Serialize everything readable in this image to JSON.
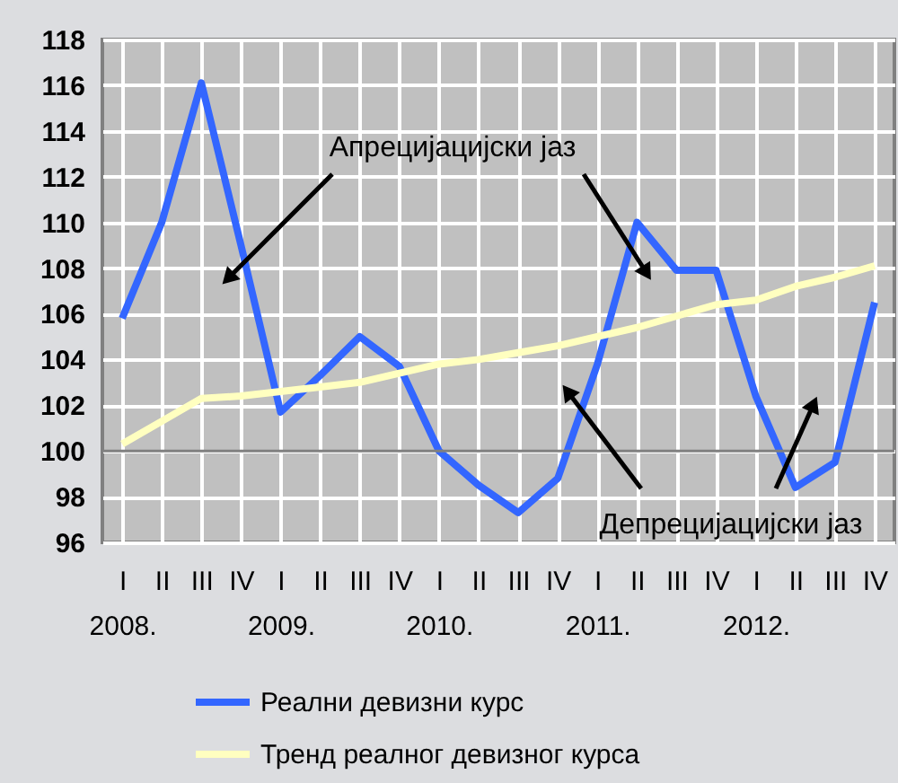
{
  "chart_data": {
    "type": "line",
    "categories": [
      "I\n2008.",
      "II",
      "III",
      "IV",
      "I\n2009.",
      "II",
      "III",
      "IV",
      "I\n2010.",
      "II",
      "III",
      "IV",
      "I\n2011.",
      "II",
      "III",
      "IV",
      "I\n2012.",
      "II",
      "III",
      "IV"
    ],
    "series": [
      {
        "name": "Реални девизни курс",
        "color": "#3366ff",
        "values": [
          105.8,
          110,
          116.1,
          109,
          101.7,
          103.3,
          105,
          103.7,
          100,
          98.5,
          97.3,
          98.8,
          103.8,
          110,
          107.9,
          107.9,
          102.4,
          98.4,
          99.5,
          106.5
        ]
      },
      {
        "name": "Тренд реалног девизног курса",
        "color": "#ffffc0",
        "values": [
          100.3,
          101.3,
          102.3,
          102.4,
          102.6,
          102.8,
          103,
          103.4,
          103.8,
          104,
          104.3,
          104.6,
          105,
          105.4,
          105.9,
          106.4,
          106.6,
          107.2,
          107.6,
          108.1
        ]
      }
    ],
    "ylim": [
      96,
      118
    ],
    "yticks": [
      96,
      98,
      100,
      102,
      104,
      106,
      108,
      110,
      112,
      114,
      116,
      118
    ],
    "grid": true,
    "legend": "bottom",
    "ref_lines": [
      {
        "axis": "y",
        "value": 100,
        "color": "#808080"
      }
    ],
    "annotations": [
      "Апрецијацијски јаз",
      "Депрецијацијски јаз"
    ]
  }
}
